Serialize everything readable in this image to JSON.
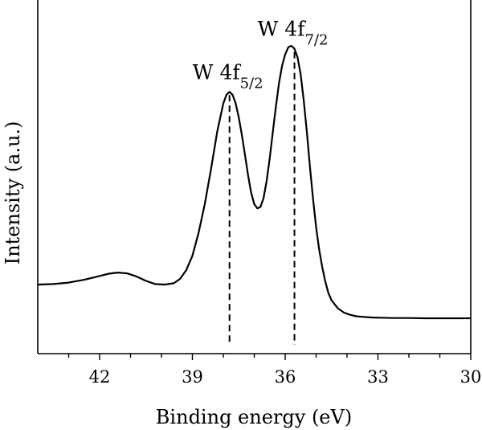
{
  "chart_data": {
    "type": "line",
    "title": "",
    "xlabel": "Binding energy (eV)",
    "ylabel": "Intensity (a.u.)",
    "x_reversed": true,
    "xlim": [
      44,
      30
    ],
    "ylim": [
      0,
      1
    ],
    "x_ticks": [
      42,
      39,
      36,
      33,
      30
    ],
    "x_tick_labels": [
      "42",
      "39",
      "36",
      "33",
      "30"
    ],
    "x_minor_ticks": [
      43,
      41,
      40,
      38,
      37,
      35,
      34,
      32,
      31
    ],
    "grid": false,
    "legend": "none",
    "series": [
      {
        "x": [
          44.0,
          43.5,
          43.0,
          42.5,
          42.0,
          41.7,
          41.4,
          41.1,
          40.8,
          40.5,
          40.2,
          39.9,
          39.6,
          39.4,
          39.2,
          39.0,
          38.8,
          38.6,
          38.4,
          38.2,
          38.0,
          37.9,
          37.8,
          37.7,
          37.6,
          37.5,
          37.4,
          37.3,
          37.2,
          37.1,
          37.0,
          36.9,
          36.8,
          36.7,
          36.6,
          36.5,
          36.4,
          36.3,
          36.2,
          36.1,
          36.0,
          35.9,
          35.8,
          35.7,
          35.6,
          35.5,
          35.4,
          35.3,
          35.2,
          35.1,
          35.0,
          34.9,
          34.8,
          34.7,
          34.6,
          34.5,
          34.3,
          34.1,
          33.9,
          33.7,
          33.5,
          33.2,
          32.9,
          32.5,
          32.0,
          31.5,
          31.0,
          30.5,
          30.0
        ],
        "y": [
          0.17,
          0.172,
          0.177,
          0.187,
          0.2,
          0.208,
          0.212,
          0.209,
          0.198,
          0.183,
          0.172,
          0.17,
          0.175,
          0.19,
          0.22,
          0.27,
          0.35,
          0.45,
          0.57,
          0.7,
          0.8,
          0.83,
          0.84,
          0.83,
          0.8,
          0.75,
          0.69,
          0.62,
          0.55,
          0.49,
          0.45,
          0.435,
          0.44,
          0.47,
          0.53,
          0.61,
          0.7,
          0.79,
          0.87,
          0.93,
          0.97,
          0.995,
          1.0,
          0.99,
          0.96,
          0.9,
          0.81,
          0.7,
          0.58,
          0.47,
          0.37,
          0.29,
          0.23,
          0.18,
          0.14,
          0.115,
          0.088,
          0.073,
          0.065,
          0.06,
          0.058,
          0.056,
          0.055,
          0.054,
          0.054,
          0.053,
          0.053,
          0.053,
          0.053
        ]
      }
    ],
    "annotations": [
      {
        "text": "W 4f",
        "sub": "5/2",
        "x": 37.8
      },
      {
        "text": "W 4f",
        "sub": "7/2",
        "x": 35.7
      }
    ]
  }
}
